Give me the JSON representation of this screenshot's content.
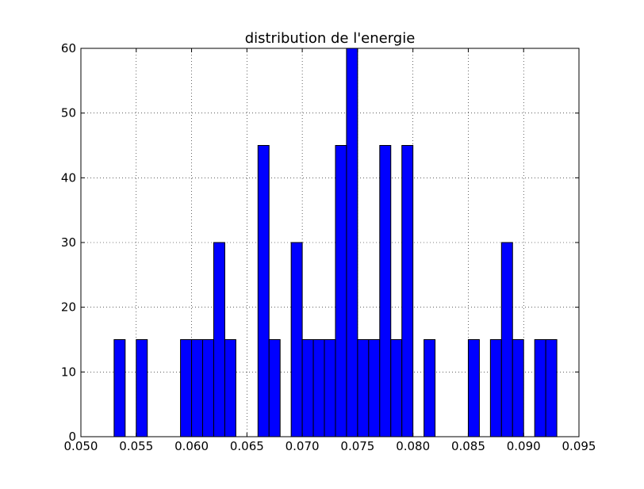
{
  "chart_data": {
    "type": "bar",
    "title": "distribution de l'energie",
    "xlabel": "",
    "ylabel": "",
    "xlim": [
      0.05,
      0.095
    ],
    "ylim": [
      0,
      60
    ],
    "grid": true,
    "bar_color": "#0000ff",
    "edge_color": "#000000",
    "bin_width": 0.001,
    "bins": [
      {
        "x": 0.0535,
        "value": 15
      },
      {
        "x": 0.0555,
        "value": 15
      },
      {
        "x": 0.0595,
        "value": 15
      },
      {
        "x": 0.0605,
        "value": 15
      },
      {
        "x": 0.0615,
        "value": 15
      },
      {
        "x": 0.0625,
        "value": 30
      },
      {
        "x": 0.0635,
        "value": 15
      },
      {
        "x": 0.0665,
        "value": 45
      },
      {
        "x": 0.0675,
        "value": 15
      },
      {
        "x": 0.0695,
        "value": 30
      },
      {
        "x": 0.0705,
        "value": 15
      },
      {
        "x": 0.0715,
        "value": 15
      },
      {
        "x": 0.0725,
        "value": 15
      },
      {
        "x": 0.0735,
        "value": 45
      },
      {
        "x": 0.0745,
        "value": 60
      },
      {
        "x": 0.0755,
        "value": 15
      },
      {
        "x": 0.0765,
        "value": 15
      },
      {
        "x": 0.0775,
        "value": 45
      },
      {
        "x": 0.0785,
        "value": 15
      },
      {
        "x": 0.0795,
        "value": 45
      },
      {
        "x": 0.0815,
        "value": 15
      },
      {
        "x": 0.0855,
        "value": 15
      },
      {
        "x": 0.0875,
        "value": 15
      },
      {
        "x": 0.0885,
        "value": 30
      },
      {
        "x": 0.0895,
        "value": 15
      },
      {
        "x": 0.0915,
        "value": 15
      },
      {
        "x": 0.0925,
        "value": 15
      }
    ],
    "x_ticks": [
      "0.050",
      "0.055",
      "0.060",
      "0.065",
      "0.070",
      "0.075",
      "0.080",
      "0.085",
      "0.090",
      "0.095"
    ],
    "y_ticks": [
      "0",
      "10",
      "20",
      "30",
      "40",
      "50",
      "60"
    ]
  }
}
